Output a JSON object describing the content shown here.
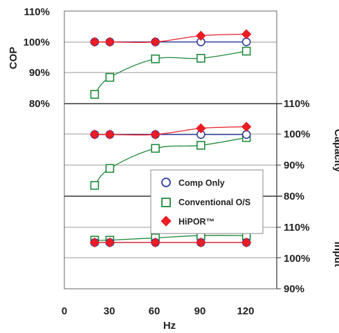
{
  "chart_data": {
    "type": "line",
    "x": [
      20,
      30,
      60,
      90,
      120
    ],
    "xlabel": "Hz",
    "xticks": [
      "0",
      "30",
      "60",
      "90",
      "120"
    ],
    "xlim": [
      0,
      140
    ],
    "colors": {
      "comp_only": "#2e3aa0",
      "conventional": "#1f8a3a",
      "hipor": "#ea1c24",
      "grid": "#9a9a9a",
      "frame": "#666666"
    },
    "legend": {
      "placement": "center-right",
      "entries": [
        {
          "label": "Comp Only",
          "marker": "circle-open"
        },
        {
          "label": "Conventional O/S",
          "marker": "square-open"
        },
        {
          "label": "HiPOR™",
          "marker": "diamond-filled"
        }
      ]
    },
    "panels": [
      {
        "ylabel": "COP",
        "ylabel_side": "left",
        "yticks": [
          "110%",
          "100%",
          "90%",
          "80%"
        ],
        "ylim": [
          80,
          110
        ],
        "series": [
          {
            "name": "Comp Only",
            "values": [
              100,
              100,
              100,
              100,
              100
            ]
          },
          {
            "name": "Conventional O/S",
            "values": [
              83,
              88.5,
              94.5,
              94.7,
              97
            ]
          },
          {
            "name": "HiPOR™",
            "values": [
              100,
              100,
              100,
              102,
              102.5
            ]
          }
        ]
      },
      {
        "ylabel": "Capacity",
        "ylabel_side": "right",
        "yticks": [
          "110%",
          "100%",
          "90%",
          "80%"
        ],
        "ylim": [
          80,
          110
        ],
        "series": [
          {
            "name": "Comp Only",
            "values": [
              100,
              100,
              100,
              100,
              100
            ]
          },
          {
            "name": "Conventional O/S",
            "values": [
              83.5,
              89,
              95.5,
              96.5,
              99
            ]
          },
          {
            "name": "HiPOR™",
            "values": [
              100,
              100,
              100,
              102,
              102.5
            ]
          }
        ]
      },
      {
        "ylabel": "Input",
        "ylabel_side": "right",
        "yticks": [
          "110%",
          "100%",
          "90%"
        ],
        "ylim": [
          90,
          110
        ],
        "series": [
          {
            "name": "Comp Only",
            "values": [
              100,
              100,
              100,
              100,
              100
            ]
          },
          {
            "name": "Conventional O/S",
            "values": [
              100.5,
              100.5,
              101,
              101.5,
              101.5
            ]
          },
          {
            "name": "HiPOR™",
            "values": [
              100,
              100,
              100,
              100,
              100
            ]
          }
        ]
      }
    ]
  }
}
